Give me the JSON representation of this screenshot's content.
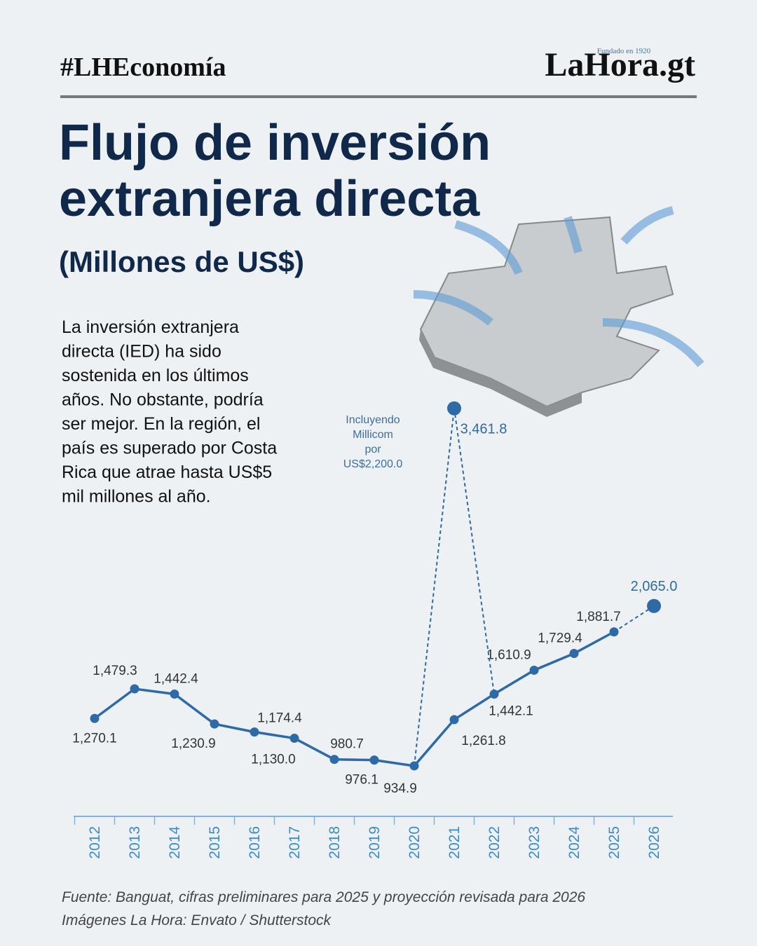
{
  "header": {
    "hashtag": "#LHEconomía",
    "logo": "LaHora.gt",
    "logo_tagline": "Fundado en 1920"
  },
  "chart_data": {
    "type": "line",
    "title": [
      "Flujo de inversión",
      "extranjera directa"
    ],
    "subtitle": "(Millones de US$)",
    "description": [
      "La inversión extranjera",
      "directa (IED) ha sido",
      "sostenida en los últimos",
      "años.  No obstante, podría",
      "ser mejor.  En la región, el",
      "país es superado por Costa",
      "Rica que atrae hasta US$5",
      "mil millones al año."
    ],
    "annotation": [
      "Incluyendo",
      "Millicom",
      "por",
      "US$2,200.0"
    ],
    "categories": [
      "2012",
      "2013",
      "2014",
      "2015",
      "2016",
      "2017",
      "2018",
      "2019",
      "2020",
      "2021",
      "2022",
      "2023",
      "2024",
      "2025",
      "2026"
    ],
    "series": [
      {
        "color": "#2e6aa6",
        "dash": false,
        "values": [
          1270.1,
          1479.3,
          1442.4,
          1230.9,
          1174.4,
          1130.0,
          980.7,
          976.1,
          934.9,
          1261.8,
          1442.1,
          1610.9,
          1729.4,
          1881.7,
          null
        ],
        "value_labels": [
          "1,270.1",
          "1,479.3",
          "1,442.4",
          "1,230.9",
          "1,174.4",
          "1,130.0",
          "980.7",
          "976.1",
          "934.9",
          "1,261.8",
          "1,442.1",
          "1,610.9",
          "1,729.4",
          "1,881.7",
          null
        ]
      },
      {
        "color": "#2e6aa6",
        "dash": true,
        "values": [
          null,
          null,
          null,
          null,
          null,
          null,
          null,
          null,
          null,
          null,
          null,
          null,
          null,
          1881.7,
          2065.0
        ],
        "value_labels": [
          null,
          null,
          null,
          null,
          null,
          null,
          null,
          null,
          null,
          null,
          null,
          null,
          null,
          null,
          "2,065.0"
        ]
      },
      {
        "color": "#2e6aa6",
        "dash": true,
        "values": [
          null,
          null,
          null,
          null,
          null,
          null,
          null,
          null,
          934.9,
          3461.8,
          1442.1,
          null,
          null,
          null,
          null
        ],
        "value_labels": [
          null,
          null,
          null,
          null,
          null,
          null,
          null,
          null,
          null,
          "3,461.8",
          null,
          null,
          null,
          null,
          null
        ]
      }
    ],
    "ylim": [
      900,
      3500
    ],
    "source": [
      "Fuente: Banguat, cifras preliminares para 2025 y proyección revisada para 2026",
      "Imágenes La Hora: Envato / Shutterstock"
    ]
  }
}
